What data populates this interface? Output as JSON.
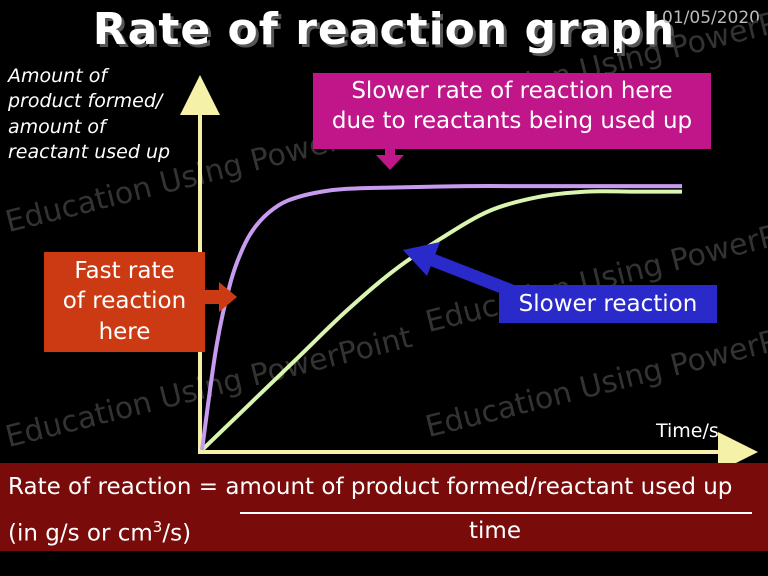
{
  "title": "Rate of reaction graph",
  "date": "01/05/2020",
  "watermark": "Education Using PowerPoint",
  "colors": {
    "background": "#000000",
    "fast_curve": "#c79cf0",
    "slow_curve": "#d9f5b0",
    "axis": "#f5f1a8",
    "pink_box": "#c0168a",
    "orange_box": "#cc3a14",
    "blue_box": "#2a2acb",
    "formula_bar": "#7a0b0b"
  },
  "annotations": {
    "pink_line1": "Slower rate of reaction here",
    "pink_line2": "due to reactants being used up",
    "orange_line1": "Fast rate",
    "orange_line2": "of reaction",
    "orange_line3": "here",
    "blue": "Slower reaction"
  },
  "formula": {
    "top": "Rate of reaction = amount of product formed/reactant used up",
    "unit_prefix": "(in g/s or cm",
    "unit_sup": "3",
    "unit_suffix": "/s)",
    "denominator": "time"
  },
  "chart_data": {
    "type": "line",
    "title": "Rate of reaction graph",
    "ylabel_lines": [
      "Amount of",
      "product formed/",
      "amount of",
      "reactant used up"
    ],
    "xlabel": "Time/s",
    "xlim": [
      0,
      100
    ],
    "ylim": [
      0,
      100
    ],
    "grid": false,
    "series": [
      {
        "name": "Fast rate of reaction",
        "color": "#c79cf0",
        "x": [
          0,
          3,
          6,
          9,
          12,
          16,
          20,
          25,
          30,
          40,
          55,
          70,
          85,
          100
        ],
        "y": [
          0,
          38,
          62,
          76,
          84,
          90,
          93,
          95,
          96,
          96.5,
          97,
          97,
          97,
          97
        ]
      },
      {
        "name": "Slower reaction",
        "color": "#d9f5b0",
        "x": [
          0,
          10,
          20,
          30,
          40,
          50,
          60,
          70,
          80,
          90,
          100
        ],
        "y": [
          0,
          17,
          34,
          51,
          66,
          78,
          88,
          93,
          95,
          95,
          95
        ]
      }
    ]
  }
}
